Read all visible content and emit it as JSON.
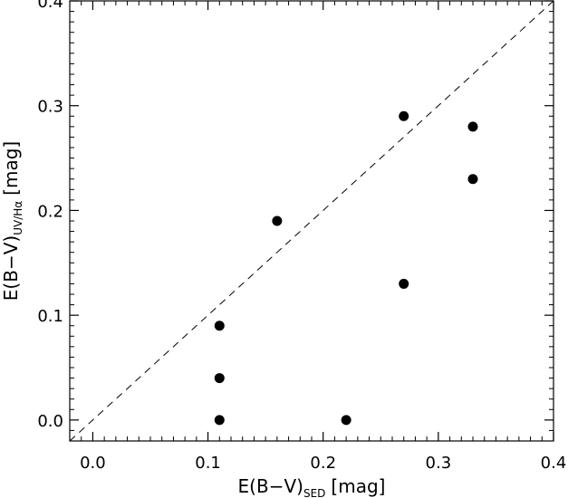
{
  "chart_data": {
    "type": "scatter",
    "xlabel": {
      "main": "E(B−V)",
      "sub": "SED",
      "unit": "[mag]"
    },
    "ylabel": {
      "main": "E(B−V)",
      "sub": "UV/Hα",
      "unit": "[mag]"
    },
    "xlim": [
      -0.02,
      0.4
    ],
    "ylim": [
      -0.02,
      0.4
    ],
    "xticks": [
      "0.0",
      "0.1",
      "0.2",
      "0.3",
      "0.4"
    ],
    "yticks": [
      "0.0",
      "0.1",
      "0.2",
      "0.3",
      "0.4"
    ],
    "grid": false,
    "reference_line": {
      "style": "dashed",
      "from": [
        -0.02,
        -0.02
      ],
      "to": [
        0.4,
        0.4
      ]
    },
    "series": [
      {
        "points": [
          {
            "x": 0.11,
            "y": 0.0
          },
          {
            "x": 0.11,
            "y": 0.04
          },
          {
            "x": 0.11,
            "y": 0.09
          },
          {
            "x": 0.16,
            "y": 0.19
          },
          {
            "x": 0.22,
            "y": 0.0
          },
          {
            "x": 0.27,
            "y": 0.13
          },
          {
            "x": 0.27,
            "y": 0.29
          },
          {
            "x": 0.33,
            "y": 0.28
          },
          {
            "x": 0.33,
            "y": 0.23
          }
        ]
      }
    ]
  }
}
